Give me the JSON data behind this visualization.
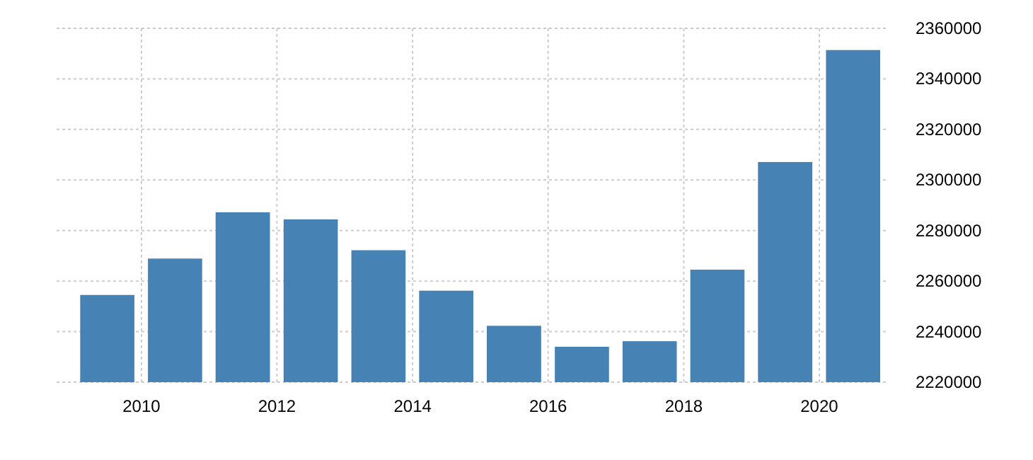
{
  "chart_data": {
    "type": "bar",
    "x": [
      "2009-07",
      "2010-07",
      "2011-07",
      "2012-07",
      "2013-07",
      "2014-07",
      "2015-07",
      "2016-07",
      "2017-07",
      "2018-07",
      "2019-07",
      "2020-07"
    ],
    "values": [
      2254500,
      2268900,
      2287200,
      2284400,
      2272200,
      2256200,
      2242300,
      2234000,
      2236200,
      2264500,
      2307100,
      2351400
    ],
    "color": "#4682b4",
    "xlim": [
      "2008-10",
      "2021"
    ],
    "xticks": [
      {
        "value": "2010",
        "label": "2010"
      },
      {
        "value": "2012",
        "label": "2012"
      },
      {
        "value": "2014",
        "label": "2014"
      },
      {
        "value": "2016",
        "label": "2016"
      },
      {
        "value": "2018",
        "label": "2018"
      },
      {
        "value": "2020",
        "label": "2020"
      }
    ],
    "ylim": [
      2220000,
      2360000
    ],
    "yticks": [
      2220000,
      2240000,
      2260000,
      2280000,
      2300000,
      2320000,
      2340000,
      2360000
    ],
    "grid": true
  }
}
